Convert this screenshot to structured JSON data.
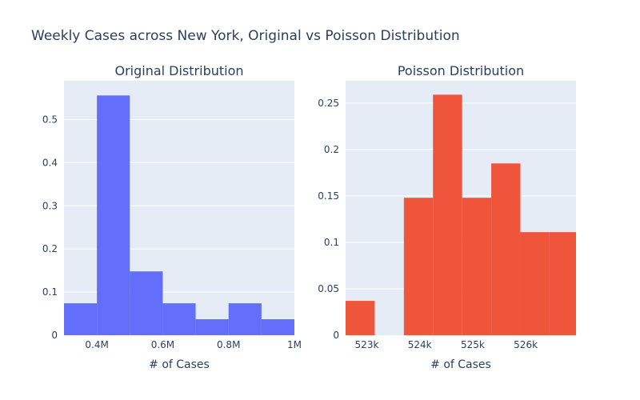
{
  "title": "Weekly Cases across New York, Original vs Poisson Distribution",
  "colors": {
    "plot_bg": "#e5ecf6",
    "grid": "#ffffff",
    "text": "#2a3f5f"
  },
  "chart_data": [
    {
      "type": "bar",
      "title": "Original Distribution",
      "xlabel": "# of Cases",
      "ylabel": "",
      "color": "#636efa",
      "xlim": [
        300000,
        1000000
      ],
      "ylim": [
        0,
        0.59
      ],
      "x_ticks": [
        400000,
        600000,
        800000,
        1000000
      ],
      "x_tick_labels": [
        "0.4M",
        "0.6M",
        "0.8M",
        "1M"
      ],
      "y_ticks": [
        0,
        0.1,
        0.2,
        0.3,
        0.4,
        0.5
      ],
      "y_tick_labels": [
        "0",
        "0.1",
        "0.2",
        "0.3",
        "0.4",
        "0.5"
      ],
      "bins": [
        {
          "x0": 300000,
          "x1": 400000,
          "value": 0.074
        },
        {
          "x0": 400000,
          "x1": 500000,
          "value": 0.556
        },
        {
          "x0": 500000,
          "x1": 600000,
          "value": 0.148
        },
        {
          "x0": 600000,
          "x1": 700000,
          "value": 0.074
        },
        {
          "x0": 700000,
          "x1": 800000,
          "value": 0.037
        },
        {
          "x0": 800000,
          "x1": 900000,
          "value": 0.074
        },
        {
          "x0": 900000,
          "x1": 1000000,
          "value": 0.037
        }
      ]
    },
    {
      "type": "bar",
      "title": "Poisson Distribution",
      "xlabel": "# of Cases",
      "ylabel": "",
      "color": "#ef553b",
      "xlim": [
        522600,
        526950
      ],
      "ylim": [
        0,
        0.274
      ],
      "x_ticks": [
        523000,
        524000,
        525000,
        526000
      ],
      "x_tick_labels": [
        "523k",
        "524k",
        "525k",
        "526k"
      ],
      "y_ticks": [
        0,
        0.05,
        0.1,
        0.15,
        0.2,
        0.25
      ],
      "y_tick_labels": [
        "0",
        "0.05",
        "0.1",
        "0.15",
        "0.2",
        "0.25"
      ],
      "bins": [
        {
          "x0": 522600,
          "x1": 523150,
          "value": 0.037
        },
        {
          "x0": 523150,
          "x1": 523700,
          "value": 0
        },
        {
          "x0": 523700,
          "x1": 524250,
          "value": 0.148
        },
        {
          "x0": 524250,
          "x1": 524800,
          "value": 0.259
        },
        {
          "x0": 524800,
          "x1": 525350,
          "value": 0.148
        },
        {
          "x0": 525350,
          "x1": 525900,
          "value": 0.185
        },
        {
          "x0": 525900,
          "x1": 526450,
          "value": 0.111
        },
        {
          "x0": 526450,
          "x1": 526950,
          "value": 0.111
        }
      ]
    }
  ]
}
